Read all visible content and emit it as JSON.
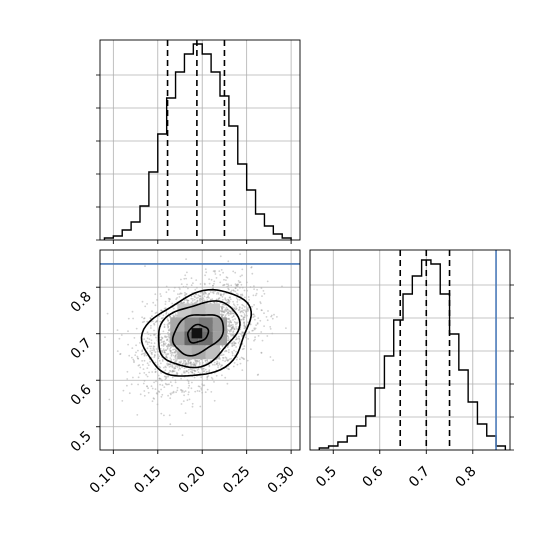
{
  "chart_data": [
    {
      "panel": "top-left",
      "type": "histogram",
      "title": "",
      "xlabel": "",
      "ylabel": "",
      "x_range": [
        0.085,
        0.31
      ],
      "y_range": [
        0,
        1.0
      ],
      "bin_edges": [
        0.09,
        0.1,
        0.11,
        0.12,
        0.13,
        0.14,
        0.15,
        0.16,
        0.17,
        0.18,
        0.19,
        0.2,
        0.21,
        0.22,
        0.23,
        0.24,
        0.25,
        0.26,
        0.27,
        0.28,
        0.29,
        0.3
      ],
      "heights": [
        0.01,
        0.02,
        0.05,
        0.09,
        0.17,
        0.34,
        0.53,
        0.71,
        0.84,
        0.93,
        0.98,
        0.93,
        0.84,
        0.72,
        0.57,
        0.38,
        0.25,
        0.13,
        0.07,
        0.03,
        0.01
      ],
      "quantile_lines": [
        0.161,
        0.194,
        0.225
      ],
      "grid": true
    },
    {
      "panel": "bottom-left",
      "type": "scatter",
      "title": "",
      "xlabel": "",
      "ylabel": "",
      "x_range": [
        0.085,
        0.31
      ],
      "y_range": [
        0.45,
        0.88
      ],
      "x_ticks": [
        "0.10",
        "0.15",
        "0.20",
        "0.25",
        "0.30"
      ],
      "y_ticks": [
        "0.5",
        "0.6",
        "0.7",
        "0.8"
      ],
      "center": [
        0.195,
        0.7
      ],
      "truth_line_y": 0.85,
      "truth_color": "#4a7ab8",
      "contour_levels": [
        {
          "rx": 0.012,
          "ry": 0.018
        },
        {
          "rx": 0.03,
          "ry": 0.04
        },
        {
          "rx": 0.048,
          "ry": 0.064
        },
        {
          "rx": 0.063,
          "ry": 0.085
        }
      ],
      "grid": true
    },
    {
      "panel": "bottom-right",
      "type": "histogram",
      "title": "",
      "xlabel": "",
      "ylabel": "",
      "x_range": [
        0.45,
        0.88
      ],
      "y_range": [
        0,
        1.0
      ],
      "x_ticks": [
        "0.5",
        "0.6",
        "0.7",
        "0.8"
      ],
      "bin_edges": [
        0.47,
        0.49,
        0.51,
        0.53,
        0.55,
        0.57,
        0.59,
        0.61,
        0.63,
        0.65,
        0.67,
        0.69,
        0.71,
        0.73,
        0.75,
        0.77,
        0.79,
        0.81,
        0.83,
        0.85,
        0.87
      ],
      "heights": [
        0.01,
        0.02,
        0.04,
        0.07,
        0.12,
        0.17,
        0.31,
        0.47,
        0.65,
        0.78,
        0.87,
        0.95,
        0.93,
        0.78,
        0.58,
        0.4,
        0.24,
        0.13,
        0.07,
        0.02
      ],
      "quantile_lines": [
        0.644,
        0.7,
        0.75
      ],
      "truth_line_x": 0.85,
      "truth_color": "#4a7ab8",
      "grid": true
    }
  ]
}
